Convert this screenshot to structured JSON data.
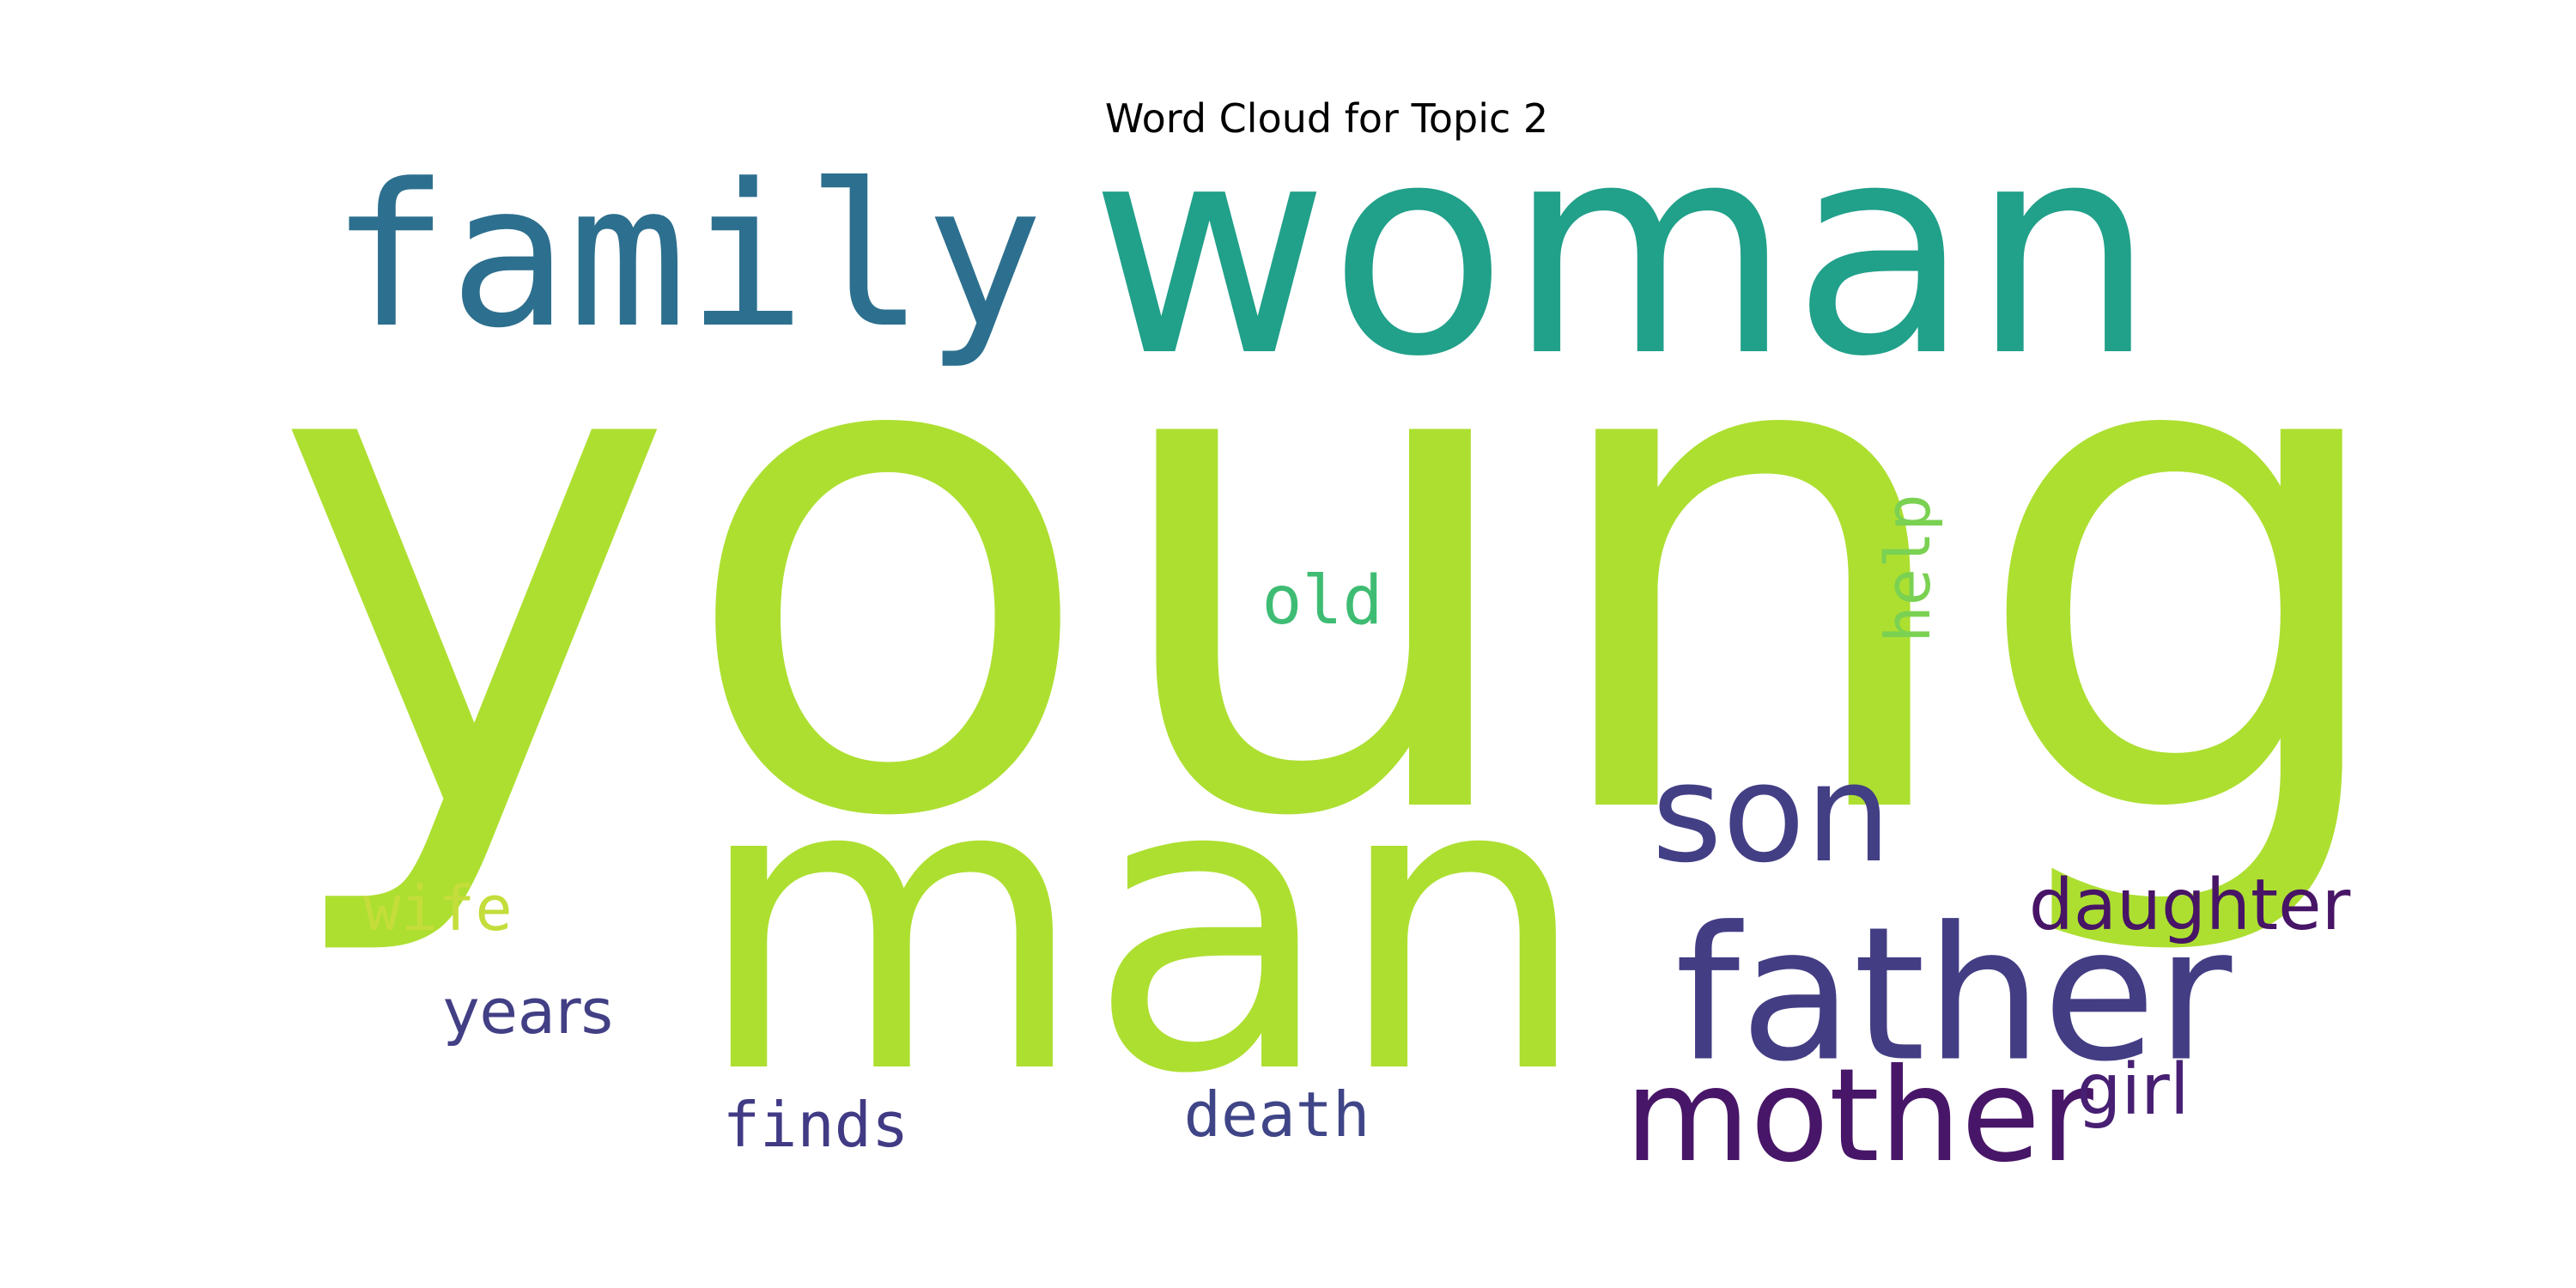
{
  "title": "Word Cloud for Topic 2",
  "words": [
    {
      "text": "young",
      "color": "#addf31"
    },
    {
      "text": "man",
      "color": "#addf31"
    },
    {
      "text": "woman",
      "color": "#21a08a"
    },
    {
      "text": "family",
      "color": "#2d6f8e"
    },
    {
      "text": "son",
      "color": "#433f85"
    },
    {
      "text": "father",
      "color": "#433d84"
    },
    {
      "text": "mother",
      "color": "#481668"
    },
    {
      "text": "daughter",
      "color": "#471466"
    },
    {
      "text": "girl",
      "color": "#471f73"
    },
    {
      "text": "old",
      "color": "#3fbc73"
    },
    {
      "text": "help",
      "color": "#7ad152"
    },
    {
      "text": "wife",
      "color": "#c4dd3a"
    },
    {
      "text": "years",
      "color": "#423f85"
    },
    {
      "text": "finds",
      "color": "#413a84"
    },
    {
      "text": "death",
      "color": "#3f4587"
    }
  ]
}
